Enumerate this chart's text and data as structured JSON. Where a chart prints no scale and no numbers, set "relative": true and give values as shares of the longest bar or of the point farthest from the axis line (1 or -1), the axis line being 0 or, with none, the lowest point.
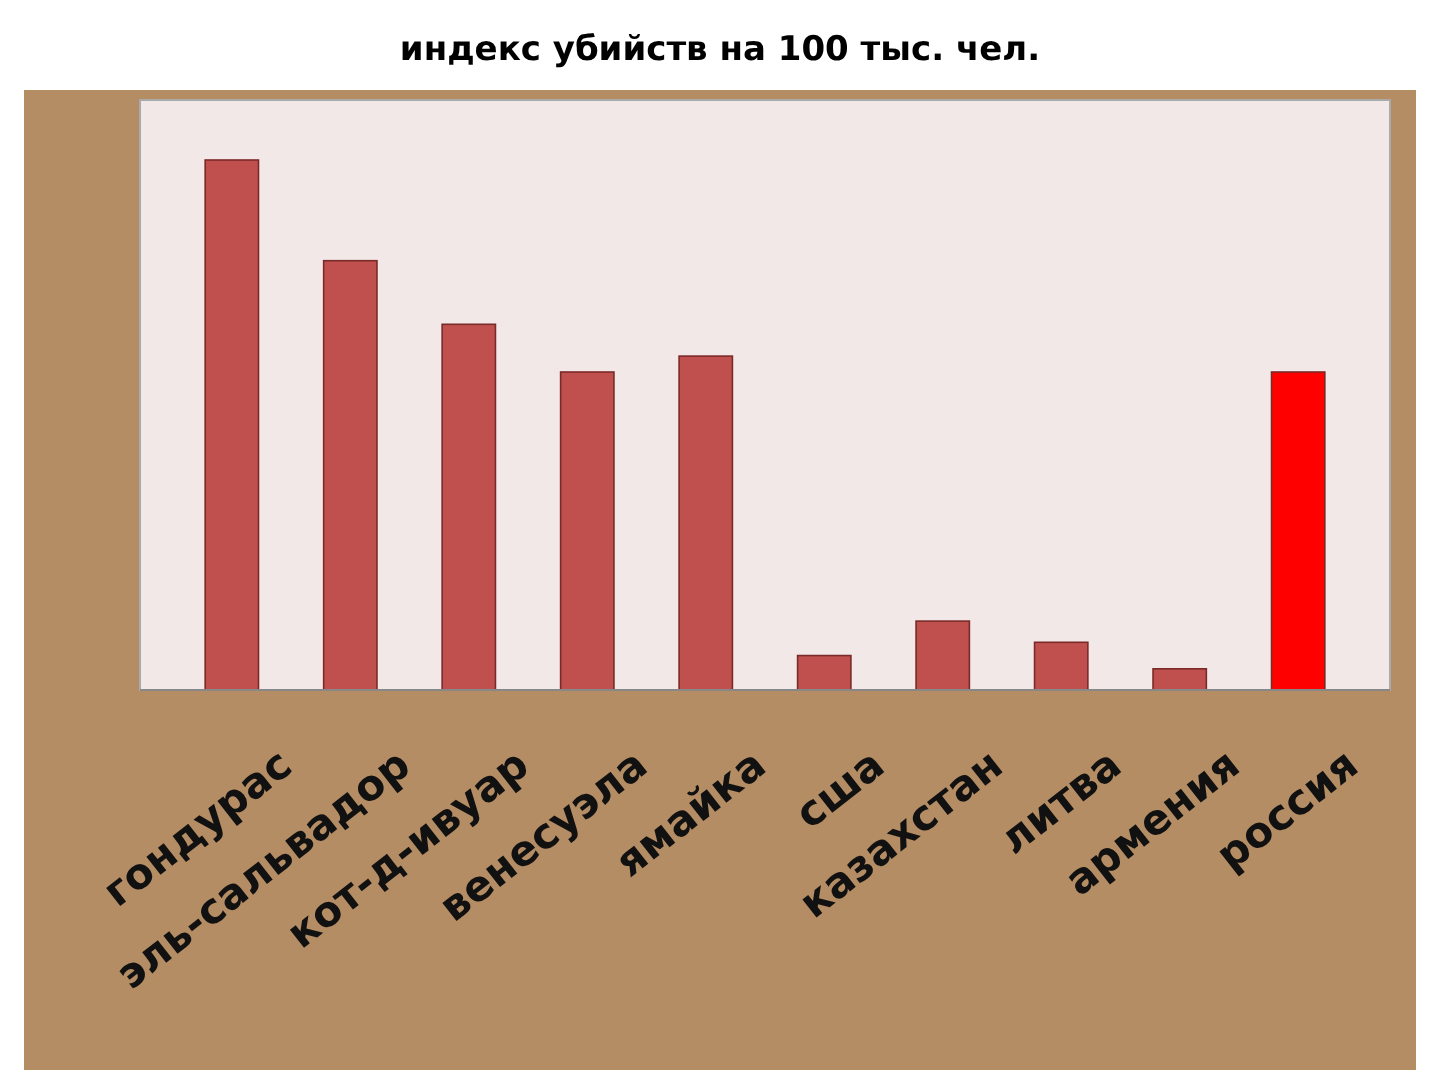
{
  "chart_data": {
    "type": "bar",
    "title": "индекс убийств на 100 тыс. чел.",
    "categories": [
      "гондурас",
      "эль-сальвадор",
      "кот-д-ивуар",
      "венесуэла",
      "ямайка",
      "сша",
      "казахстан",
      "литва",
      "армения",
      "россия"
    ],
    "values": [
      1,
      0.81,
      0.69,
      0.6,
      0.63,
      0.065,
      0.13,
      0.09,
      0.04,
      0.6
    ],
    "colors": [
      "#c0504d",
      "#c0504d",
      "#c0504d",
      "#c0504d",
      "#c0504d",
      "#c0504d",
      "#c0504d",
      "#c0504d",
      "#c0504d",
      "#ff0000"
    ],
    "relative": true
  }
}
